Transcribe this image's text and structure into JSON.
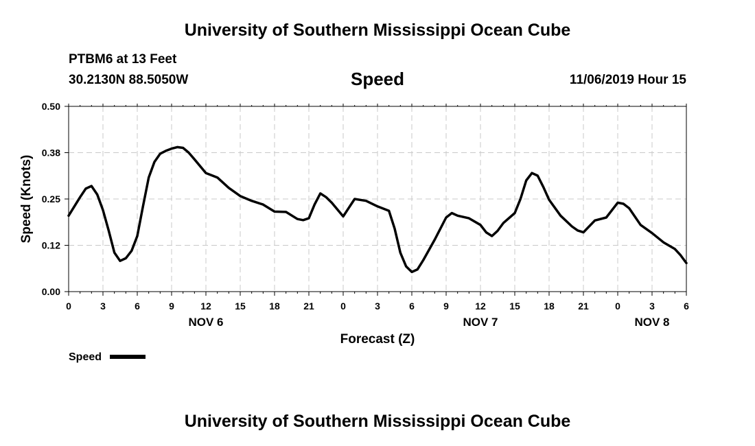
{
  "header": {
    "title": "University of Southern Mississippi Ocean Cube",
    "station": "PTBM6 at 13 Feet",
    "coords": "30.2130N 88.5050W",
    "variable": "Speed",
    "datetime": "11/06/2019 Hour 15"
  },
  "footer": {
    "title": "University of Southern Mississippi Ocean Cube"
  },
  "chart_data": {
    "type": "line",
    "title": "Speed",
    "xlabel": "Forecast (Z)",
    "ylabel": "Speed (Knots)",
    "x_unit": "hours since NOV 6 00Z",
    "xlim": [
      0,
      54
    ],
    "ylim": [
      0,
      0.5
    ],
    "yticks": [
      0.0,
      0.125,
      0.25,
      0.375,
      0.5
    ],
    "ytick_labels": [
      "0.00",
      "0.12",
      "0.25",
      "0.38",
      "0.50"
    ],
    "xticks": [
      0,
      3,
      6,
      9,
      12,
      15,
      18,
      21,
      24,
      27,
      30,
      33,
      36,
      39,
      42,
      45,
      48,
      51,
      54
    ],
    "xtick_labels": [
      "0",
      "3",
      "6",
      "9",
      "12",
      "15",
      "18",
      "21",
      "0",
      "3",
      "6",
      "9",
      "12",
      "15",
      "18",
      "21",
      "0",
      "3",
      "6"
    ],
    "day_labels": [
      {
        "hour": 12,
        "label": "NOV 6"
      },
      {
        "hour": 36,
        "label": "NOV 7"
      },
      {
        "hour": 51,
        "label": "NOV 8"
      }
    ],
    "grid": true,
    "legend": {
      "position": "bottom-left",
      "entries": [
        "Speed"
      ]
    },
    "series": [
      {
        "name": "Speed",
        "color": "#000000",
        "points": [
          [
            0,
            0.205
          ],
          [
            1,
            0.255
          ],
          [
            1.5,
            0.278
          ],
          [
            2,
            0.285
          ],
          [
            2.5,
            0.262
          ],
          [
            3,
            0.22
          ],
          [
            3.5,
            0.165
          ],
          [
            4,
            0.105
          ],
          [
            4.5,
            0.083
          ],
          [
            5,
            0.09
          ],
          [
            5.5,
            0.11
          ],
          [
            6,
            0.15
          ],
          [
            6.5,
            0.23
          ],
          [
            7,
            0.308
          ],
          [
            7.5,
            0.35
          ],
          [
            8,
            0.372
          ],
          [
            8.5,
            0.38
          ],
          [
            9,
            0.386
          ],
          [
            9.5,
            0.39
          ],
          [
            10,
            0.388
          ],
          [
            10.5,
            0.375
          ],
          [
            11,
            0.357
          ],
          [
            12,
            0.32
          ],
          [
            13,
            0.308
          ],
          [
            14,
            0.28
          ],
          [
            15,
            0.258
          ],
          [
            16,
            0.245
          ],
          [
            17,
            0.235
          ],
          [
            18,
            0.216
          ],
          [
            19,
            0.215
          ],
          [
            20,
            0.196
          ],
          [
            20.5,
            0.193
          ],
          [
            21,
            0.198
          ],
          [
            21.5,
            0.235
          ],
          [
            22,
            0.265
          ],
          [
            22.5,
            0.255
          ],
          [
            23,
            0.24
          ],
          [
            24,
            0.203
          ],
          [
            25,
            0.25
          ],
          [
            26,
            0.245
          ],
          [
            27,
            0.23
          ],
          [
            28,
            0.218
          ],
          [
            28.5,
            0.17
          ],
          [
            29,
            0.105
          ],
          [
            29.5,
            0.068
          ],
          [
            30,
            0.053
          ],
          [
            30.5,
            0.06
          ],
          [
            31,
            0.085
          ],
          [
            32,
            0.14
          ],
          [
            33,
            0.2
          ],
          [
            33.5,
            0.212
          ],
          [
            34,
            0.205
          ],
          [
            35,
            0.198
          ],
          [
            36,
            0.18
          ],
          [
            36.5,
            0.16
          ],
          [
            37,
            0.15
          ],
          [
            37.5,
            0.164
          ],
          [
            38,
            0.185
          ],
          [
            39,
            0.212
          ],
          [
            39.5,
            0.25
          ],
          [
            40,
            0.3
          ],
          [
            40.5,
            0.32
          ],
          [
            41,
            0.313
          ],
          [
            41.5,
            0.282
          ],
          [
            42,
            0.248
          ],
          [
            43,
            0.205
          ],
          [
            44,
            0.176
          ],
          [
            44.5,
            0.165
          ],
          [
            45,
            0.16
          ],
          [
            46,
            0.192
          ],
          [
            47,
            0.2
          ],
          [
            48,
            0.24
          ],
          [
            48.5,
            0.237
          ],
          [
            49,
            0.225
          ],
          [
            50,
            0.18
          ],
          [
            51,
            0.158
          ],
          [
            52,
            0.133
          ],
          [
            53,
            0.115
          ],
          [
            53.5,
            0.098
          ],
          [
            54,
            0.077
          ]
        ]
      }
    ]
  }
}
